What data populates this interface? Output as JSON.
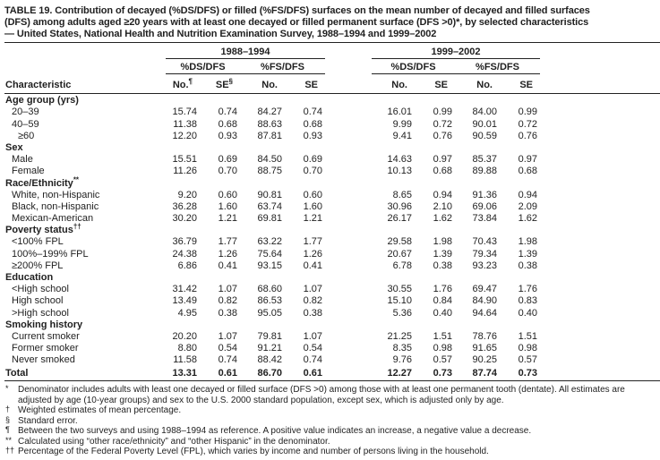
{
  "title_lines": [
    "TABLE 19. Contribution of decayed (%DS/DFS) or filled (%FS/DFS) surfaces on the mean number of decayed and filled surfaces",
    "(DFS) among adults aged ≥20 years with at least one decayed or filled permanent surface (DFS >0)*, by selected characteristics",
    "— United States, National Health and Nutrition Examination Survey, 1988–1994 and 1999–2002"
  ],
  "table": {
    "group_headers": [
      "1988–1994",
      "1999–2002"
    ],
    "subgroup_headers": [
      "%DS/DFS",
      "%FS/DFS",
      "%DS/DFS",
      "%FS/DFS"
    ],
    "characteristic_header": "Characteristic",
    "columns": [
      {
        "t": "No.",
        "s": "¶"
      },
      {
        "t": "SE",
        "s": "§"
      },
      {
        "t": "No."
      },
      {
        "t": "SE"
      },
      {
        "t": "No."
      },
      {
        "t": "SE"
      },
      {
        "t": "No."
      },
      {
        "t": "SE"
      }
    ],
    "sections": [
      {
        "label": "Age group (yrs)",
        "rows": [
          {
            "label": "20–39",
            "values": [
              "15.74",
              "0.74",
              "84.27",
              "0.74",
              "16.01",
              "0.99",
              "84.00",
              "0.99"
            ]
          },
          {
            "label": "40–59",
            "values": [
              "11.38",
              "0.68",
              "88.63",
              "0.68",
              "9.99",
              "0.72",
              "90.01",
              "0.72"
            ]
          },
          {
            "label": "≥60",
            "indent": 2,
            "values": [
              "12.20",
              "0.93",
              "87.81",
              "0.93",
              "9.41",
              "0.76",
              "90.59",
              "0.76"
            ]
          }
        ]
      },
      {
        "label": "Sex",
        "rows": [
          {
            "label": "Male",
            "values": [
              "15.51",
              "0.69",
              "84.50",
              "0.69",
              "14.63",
              "0.97",
              "85.37",
              "0.97"
            ]
          },
          {
            "label": "Female",
            "values": [
              "11.26",
              "0.70",
              "88.75",
              "0.70",
              "10.13",
              "0.68",
              "89.88",
              "0.68"
            ]
          }
        ]
      },
      {
        "label": "Race/Ethnicity",
        "sup": "**",
        "rows": [
          {
            "label": "White, non-Hispanic",
            "values": [
              "9.20",
              "0.60",
              "90.81",
              "0.60",
              "8.65",
              "0.94",
              "91.36",
              "0.94"
            ]
          },
          {
            "label": "Black, non-Hispanic",
            "values": [
              "36.28",
              "1.60",
              "63.74",
              "1.60",
              "30.96",
              "2.10",
              "69.06",
              "2.09"
            ]
          },
          {
            "label": "Mexican-American",
            "values": [
              "30.20",
              "1.21",
              "69.81",
              "1.21",
              "26.17",
              "1.62",
              "73.84",
              "1.62"
            ]
          }
        ]
      },
      {
        "label": "Poverty status",
        "sup": "††",
        "rows": [
          {
            "label": "<100% FPL",
            "values": [
              "36.79",
              "1.77",
              "63.22",
              "1.77",
              "29.58",
              "1.98",
              "70.43",
              "1.98"
            ]
          },
          {
            "label": "100%–199% FPL",
            "values": [
              "24.38",
              "1.26",
              "75.64",
              "1.26",
              "20.67",
              "1.39",
              "79.34",
              "1.39"
            ]
          },
          {
            "label": "≥200% FPL",
            "values": [
              "6.86",
              "0.41",
              "93.15",
              "0.41",
              "6.78",
              "0.38",
              "93.23",
              "0.38"
            ]
          }
        ]
      },
      {
        "label": "Education",
        "rows": [
          {
            "label": "<High school",
            "values": [
              "31.42",
              "1.07",
              "68.60",
              "1.07",
              "30.55",
              "1.76",
              "69.47",
              "1.76"
            ]
          },
          {
            "label": "High school",
            "values": [
              "13.49",
              "0.82",
              "86.53",
              "0.82",
              "15.10",
              "0.84",
              "84.90",
              "0.83"
            ]
          },
          {
            "label": ">High school",
            "values": [
              "4.95",
              "0.38",
              "95.05",
              "0.38",
              "5.36",
              "0.40",
              "94.64",
              "0.40"
            ]
          }
        ]
      },
      {
        "label": "Smoking history",
        "rows": [
          {
            "label": "Current smoker",
            "values": [
              "20.20",
              "1.07",
              "79.81",
              "1.07",
              "21.25",
              "1.51",
              "78.76",
              "1.51"
            ]
          },
          {
            "label": "Former smoker",
            "values": [
              "8.80",
              "0.54",
              "91.21",
              "0.54",
              "8.35",
              "0.98",
              "91.65",
              "0.98"
            ]
          },
          {
            "label": "Never smoked",
            "values": [
              "11.58",
              "0.74",
              "88.42",
              "0.74",
              "9.76",
              "0.57",
              "90.25",
              "0.57"
            ]
          }
        ]
      }
    ],
    "total_row": {
      "label": "Total",
      "values": [
        "13.31",
        "0.61",
        "86.70",
        "0.61",
        "12.27",
        "0.73",
        "87.74",
        "0.73"
      ]
    }
  },
  "footnotes": [
    {
      "marker": "*",
      "text": "Denominator includes adults with least one decayed or filled surface (DFS >0) among those with at least one permanent tooth (dentate).  All estimates are adjusted by age (10-year groups) and sex to the U.S. 2000 standard population, except sex, which is adjusted only by age."
    },
    {
      "marker": "†",
      "text": "Weighted estimates of mean percentage."
    },
    {
      "marker": "§",
      "text": "Standard error."
    },
    {
      "marker": "¶",
      "text": "Between the two surveys and using 1988–1994 as reference. A positive value indicates an increase, a negative value a decrease."
    },
    {
      "marker": "**",
      "text": "Calculated using “other race/ethnicity” and “other Hispanic” in the denominator."
    },
    {
      "marker": "††",
      "text": "Percentage of the Federal Poverty Level (FPL), which varies by income and number of persons living in the household."
    }
  ]
}
